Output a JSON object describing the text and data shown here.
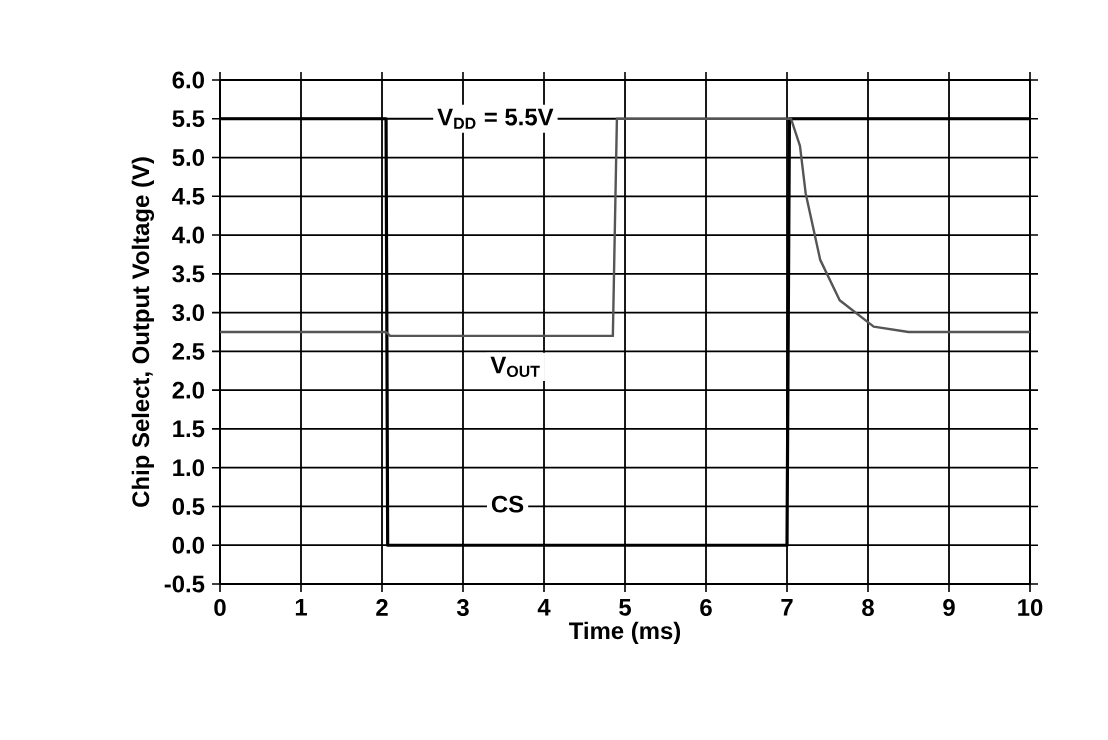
{
  "chart_data": {
    "type": "line",
    "xlabel": "Time (ms)",
    "ylabel": "Chip Select, Output Voltage (V)",
    "xlim": [
      0,
      10
    ],
    "xticks": [
      0,
      1,
      2,
      3,
      4,
      5,
      6,
      7,
      8,
      9,
      10
    ],
    "ylim": [
      -0.5,
      6.0
    ],
    "yticks": [
      {
        "value": -0.5,
        "label": "-0.5"
      },
      {
        "value": 0,
        "label": "0.0"
      },
      {
        "value": 0.5,
        "label": "0.5"
      },
      {
        "value": 1,
        "label": "1.0"
      },
      {
        "value": 1.5,
        "label": "1.5"
      },
      {
        "value": 2,
        "label": "2.0"
      },
      {
        "value": 2.5,
        "label": "2.5"
      },
      {
        "value": 3,
        "label": "3.0"
      },
      {
        "value": 3.5,
        "label": "3.5"
      },
      {
        "value": 4,
        "label": "4.0"
      },
      {
        "value": 4.5,
        "label": "4.5"
      },
      {
        "value": 5,
        "label": "5.0"
      },
      {
        "value": 5.5,
        "label": "5.5"
      },
      {
        "value": 6,
        "label": "6.0"
      }
    ],
    "grid": true,
    "marker": "none",
    "series": [
      {
        "color": "#000000",
        "line_style": "solid",
        "x": [
          0,
          2.05,
          2.07,
          7.0,
          7.03,
          10
        ],
        "values": [
          5.5,
          5.5,
          0,
          0,
          5.5,
          5.5
        ]
      },
      {
        "color": "#555555",
        "line_style": "solid",
        "x": [
          0,
          2.05,
          2.1,
          4.85,
          4.9,
          7.0,
          7.05,
          7.16,
          7.23,
          7.41,
          7.65,
          8.07,
          8.5,
          10
        ],
        "values": [
          2.75,
          2.75,
          2.7,
          2.7,
          5.5,
          5.5,
          5.5,
          5.15,
          4.54,
          3.68,
          3.16,
          2.82,
          2.75,
          2.75
        ]
      }
    ],
    "annotations": [
      "V$_{DD}$ = 5.5V",
      {
        "text": "V$_{OUT}$",
        "x": 3.65,
        "y": 2.3
      },
      {
        "text": "CS",
        "x": 3.55,
        "y": 0.53
      }
    ]
  }
}
